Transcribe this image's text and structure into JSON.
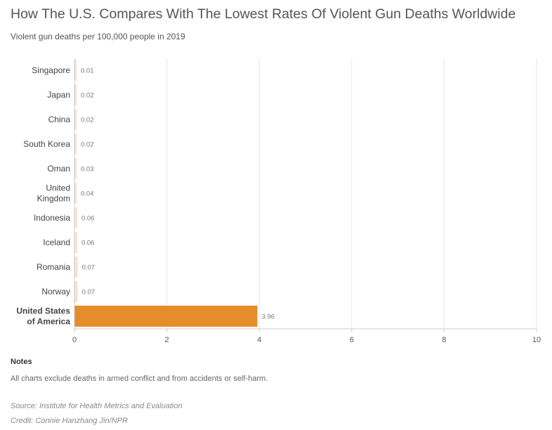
{
  "title": "How The U.S. Compares With The Lowest Rates Of Violent Gun Deaths Worldwide",
  "subtitle": "Violent gun deaths per 100,000 people in 2019",
  "notes": {
    "heading": "Notes",
    "text": "All charts exclude deaths in armed conflict and from accidents or self-harm."
  },
  "source": "Source: Institute for Health Metrics and Evaluation",
  "credit": "Credit: Connie Hanzhang Jin/NPR",
  "colors": {
    "highlight": "#e58c2b",
    "others": "#f8e1cf",
    "grid": "#e6e6e6",
    "axis": "#cccccc"
  },
  "chart_data": {
    "type": "bar",
    "orientation": "horizontal",
    "title": "How The U.S. Compares With The Lowest Rates Of Violent Gun Deaths Worldwide",
    "subtitle": "Violent gun deaths per 100,000 people in 2019",
    "categories": [
      [
        "Singapore"
      ],
      [
        "Japan"
      ],
      [
        "China"
      ],
      [
        "South Korea"
      ],
      [
        "Oman"
      ],
      [
        "United",
        "Kingdom"
      ],
      [
        "Indonesia"
      ],
      [
        "Iceland"
      ],
      [
        "Romania"
      ],
      [
        "Norway"
      ],
      [
        "United States",
        "of America"
      ]
    ],
    "values": [
      0.01,
      0.02,
      0.02,
      0.02,
      0.03,
      0.04,
      0.06,
      0.06,
      0.07,
      0.07,
      3.96
    ],
    "value_labels": [
      "0.01",
      "0.02",
      "0.02",
      "0.02",
      "0.03",
      "0.04",
      "0.06",
      "0.06",
      "0.07",
      "0.07",
      "3.96"
    ],
    "highlight_index": 10,
    "xlim": [
      0,
      10
    ],
    "xticks": [
      0,
      2,
      4,
      6,
      8,
      10
    ],
    "xtick_labels": [
      "0",
      "2",
      "4",
      "6",
      "8",
      "10"
    ],
    "grid": true,
    "xlabel": "",
    "ylabel": ""
  }
}
